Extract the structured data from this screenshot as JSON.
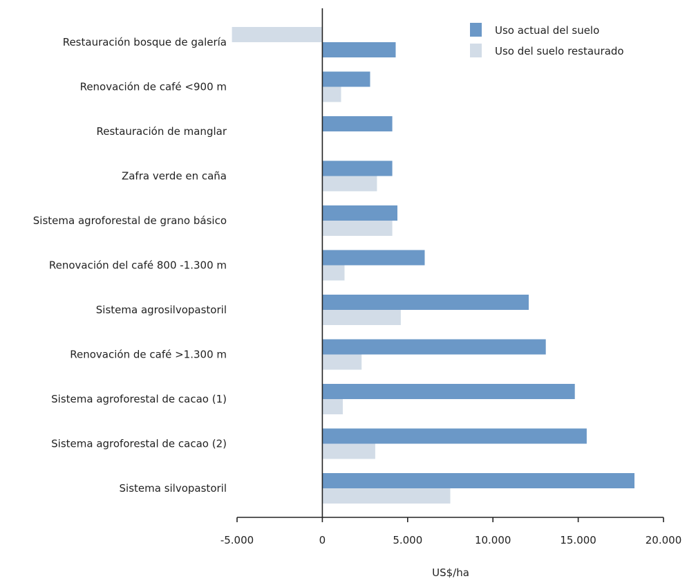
{
  "chart_data": {
    "type": "bar",
    "orientation": "horizontal",
    "categories": [
      "Restauración bosque de galería",
      "Renovación de café <900 m",
      "Restauración de manglar",
      "Zafra verde en caña",
      "Sistema agroforestal de grano básico",
      "Renovación del café 800 -1.300 m",
      "Sistema agrosilvopastoril",
      "Renovación de café >1.300 m",
      "Sistema agroforestal de cacao (1)",
      "Sistema agroforestal de cacao (2)",
      "Sistema silvopastoril"
    ],
    "series": [
      {
        "name": "Uso actual del suelo",
        "color": "#6b98c7",
        "values": [
          4300,
          2800,
          4100,
          4100,
          4400,
          6000,
          12100,
          13100,
          14800,
          15500,
          18300
        ]
      },
      {
        "name": "Uso del suelo restaurado",
        "color": "#d2dce7",
        "values": [
          -5300,
          1100,
          null,
          3200,
          4100,
          1300,
          4600,
          2300,
          1200,
          3100,
          7500
        ]
      }
    ],
    "xlim": [
      -5000,
      20000
    ],
    "x_ticks": [
      -5000,
      0,
      5000,
      10000,
      15000,
      20000
    ],
    "x_tick_labels": [
      "-5.000",
      "0",
      "5.000",
      "10.000",
      "15.000",
      "20.000"
    ],
    "xlabel": "US$/ha",
    "legend_position": "top-right",
    "grid": false
  }
}
